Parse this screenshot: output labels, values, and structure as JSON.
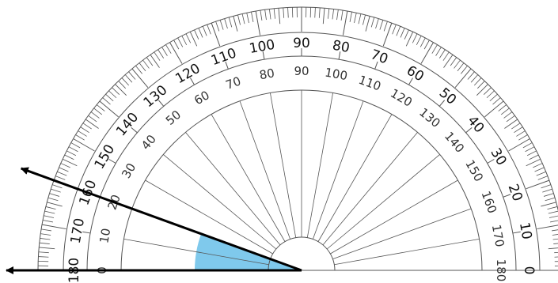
{
  "protractor": {
    "outer_scale": [
      "0",
      "10",
      "20",
      "30",
      "40",
      "50",
      "60",
      "70",
      "80",
      "90",
      "100",
      "110",
      "120",
      "130",
      "140",
      "150",
      "160",
      "170",
      "180"
    ],
    "inner_scale": [
      "180",
      "170",
      "160",
      "150",
      "140",
      "130",
      "120",
      "110",
      "100",
      "90",
      "80",
      "70",
      "60",
      "50",
      "40",
      "30",
      "20",
      "10",
      "0"
    ],
    "major_step_deg": 10,
    "minor_step_deg": 1,
    "colors": {
      "line": "#555555",
      "text": "#111111",
      "background": "#ffffff"
    }
  },
  "angle": {
    "ray1_deg": 180,
    "ray2_deg": 160,
    "fill_color": "#7fc9ec",
    "ray_color": "#000000"
  }
}
